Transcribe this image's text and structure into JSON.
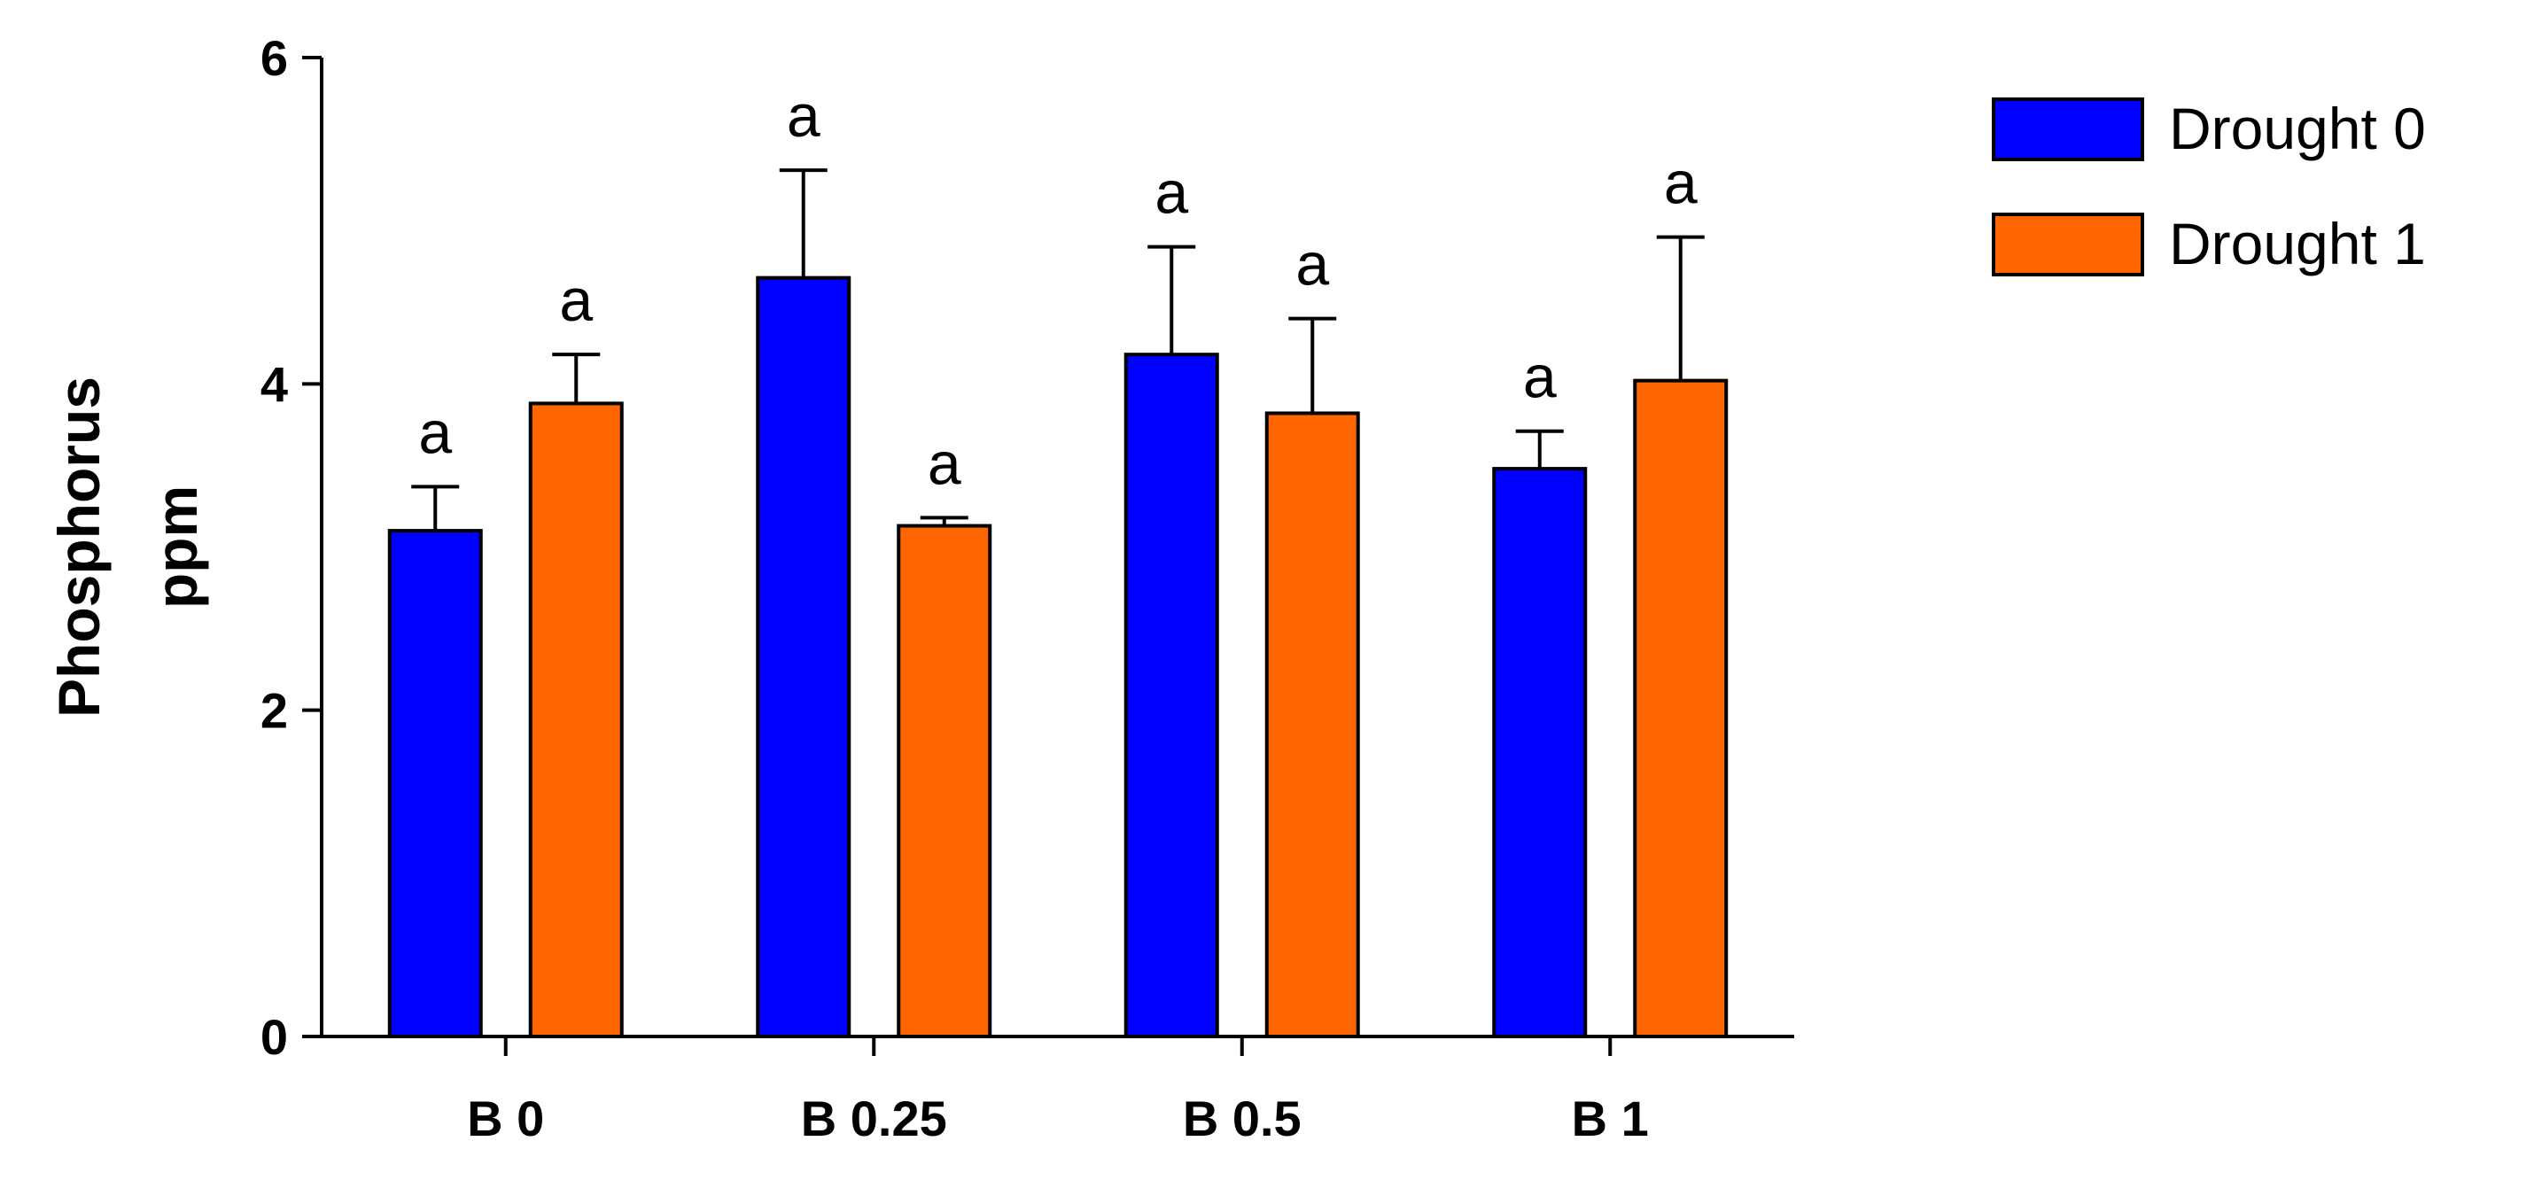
{
  "chart_data": {
    "type": "bar",
    "categories": [
      "B 0",
      "B 0.25",
      "B 0.5",
      "B 1"
    ],
    "ylabel_lines": [
      "Phosphorus",
      "ppm"
    ],
    "ylim": [
      0,
      6
    ],
    "yticks": [
      "0",
      "2",
      "4",
      "6"
    ],
    "grid": false,
    "legend_position": "top-right",
    "series": [
      {
        "name": "Drought 0",
        "color": "#0000ff",
        "values": [
          3.1,
          4.65,
          4.18,
          3.48
        ],
        "errors": [
          0.27,
          0.66,
          0.66,
          0.23
        ],
        "labels": [
          "a",
          "a",
          "a",
          "a"
        ]
      },
      {
        "name": "Drought 1",
        "color": "#ff6600",
        "values": [
          3.88,
          3.13,
          3.82,
          4.02
        ],
        "errors": [
          0.3,
          0.05,
          0.58,
          0.88
        ],
        "labels": [
          "a",
          "a",
          "a",
          "a"
        ]
      }
    ]
  }
}
